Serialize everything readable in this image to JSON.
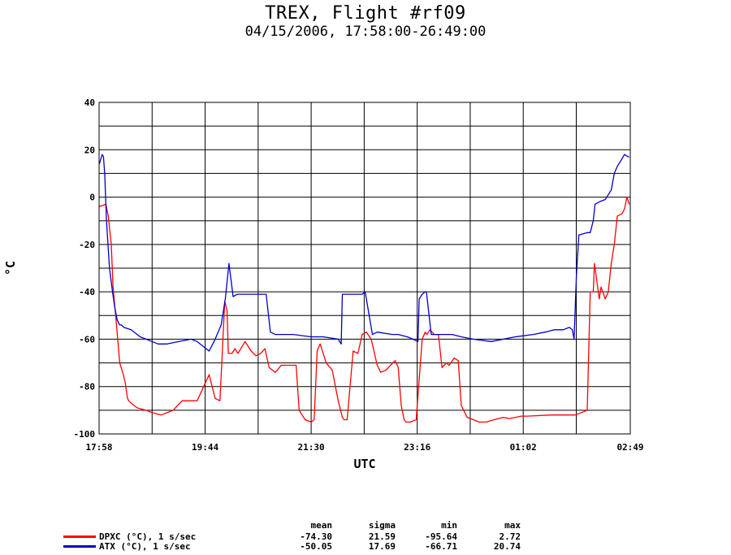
{
  "title": "TREX, Flight #rf09",
  "subtitle": "04/15/2006, 17:58:00-26:49:00",
  "chart_data": {
    "type": "line",
    "xlabel": "UTC",
    "ylabel": "°C",
    "x_unit": "hours UTC",
    "xlim": [
      17.9667,
      26.8167
    ],
    "ylim": [
      -100,
      40
    ],
    "x_ticks": [
      {
        "value": 17.9667,
        "label": "17:58"
      },
      {
        "value": 19.7333,
        "label": "19:44"
      },
      {
        "value": 21.5,
        "label": "21:30"
      },
      {
        "value": 23.2667,
        "label": "23:16"
      },
      {
        "value": 25.0333,
        "label": "01:02"
      },
      {
        "value": 26.8167,
        "label": "02:49"
      }
    ],
    "x_gridlines": [
      17.9667,
      18.85,
      19.7333,
      20.6167,
      21.5,
      22.3833,
      23.2667,
      24.15,
      25.0333,
      25.9167,
      26.8167
    ],
    "y_ticks": [
      -100,
      -80,
      -60,
      -40,
      -20,
      0,
      20,
      40
    ],
    "y_gridlines": [
      -100,
      -90,
      -80,
      -70,
      -60,
      -50,
      -40,
      -30,
      -20,
      -10,
      0,
      10,
      20,
      30,
      40
    ],
    "grid": true,
    "stats_headers": [
      "mean",
      "sigma",
      "min",
      "max"
    ],
    "series": [
      {
        "name": "DPXC (°C), 1 s/sec",
        "color": "#ff0000",
        "stats": {
          "mean": "-74.30",
          "sigma": "21.59",
          "min": "-95.64",
          "max": "2.72"
        },
        "x": [
          17.97,
          18.08,
          18.12,
          18.17,
          18.2,
          18.26,
          18.31,
          18.37,
          18.4,
          18.44,
          18.46,
          18.48,
          18.5,
          18.55,
          18.6,
          18.75,
          18.85,
          19.0,
          19.2,
          19.35,
          19.55,
          19.6,
          19.8,
          19.8,
          19.9,
          19.98,
          20.06,
          20.1,
          20.12,
          20.18,
          20.23,
          20.28,
          20.4,
          20.5,
          20.58,
          20.66,
          20.73,
          20.8,
          20.9,
          20.94,
          21.0,
          21.08,
          21.25,
          21.3,
          21.4,
          21.5,
          21.55,
          21.6,
          21.65,
          21.7,
          21.75,
          21.85,
          21.95,
          22.02,
          22.05,
          22.1,
          22.2,
          22.28,
          22.35,
          22.42,
          22.5,
          22.6,
          22.66,
          22.75,
          22.82,
          22.9,
          22.95,
          23.0,
          23.05,
          23.08,
          23.15,
          23.25,
          23.35,
          23.4,
          23.43,
          23.48,
          23.55,
          23.62,
          23.68,
          23.75,
          23.8,
          23.88,
          23.95,
          24.0,
          24.1,
          24.2,
          24.3,
          24.38,
          24.42,
          24.55,
          24.7,
          24.8,
          24.9,
          25.0,
          25.1,
          25.5,
          25.9,
          26.0,
          26.1,
          26.15,
          26.2,
          26.22,
          26.3,
          26.33,
          26.4,
          26.45,
          26.5,
          26.55,
          26.6,
          26.68,
          26.72,
          26.76,
          26.8
        ],
        "y": [
          -4,
          -3,
          -8,
          -20,
          -38,
          -55,
          -70,
          -75,
          -78,
          -85,
          -86,
          -86.5,
          -87,
          -88,
          -89,
          -90,
          -91,
          -92,
          -90,
          -86,
          -86,
          -86,
          -75,
          -75,
          -85,
          -86,
          -44,
          -48,
          -66,
          -66,
          -64,
          -66,
          -61,
          -65,
          -67,
          -66,
          -64,
          -72,
          -74,
          -73,
          -71,
          -71,
          -71,
          -90,
          -94,
          -95,
          -94,
          -65,
          -62,
          -66,
          -70,
          -73,
          -86,
          -93,
          -94,
          -94,
          -65,
          -66,
          -58,
          -57,
          -60,
          -71,
          -74,
          -73,
          -71,
          -69,
          -72,
          -88,
          -94,
          -95,
          -95,
          -94,
          -60,
          -57,
          -58,
          -56,
          -58,
          -58,
          -72,
          -70,
          -71,
          -68,
          -69,
          -88,
          -93,
          -94,
          -95,
          -95,
          -95,
          -94,
          -93,
          -93.5,
          -93,
          -92.5,
          -92.5,
          -92,
          -92,
          -91,
          -90,
          -40,
          -40,
          -28,
          -43,
          -38,
          -43,
          -40,
          -28,
          -20,
          -8,
          -7,
          -5,
          0,
          -3
        ]
      },
      {
        "name": "ATX (°C), 1 s/sec",
        "color": "#0000cc",
        "stats": {
          "mean": "-50.05",
          "sigma": "17.69",
          "min": "-66.71",
          "max": "20.74"
        },
        "x": [
          17.97,
          18.02,
          18.04,
          18.06,
          18.09,
          18.14,
          18.19,
          18.23,
          18.27,
          18.31,
          18.34,
          18.38,
          18.5,
          18.65,
          18.75,
          18.85,
          18.95,
          19.1,
          19.3,
          19.5,
          19.6,
          19.7,
          19.8,
          19.9,
          20.0,
          20.07,
          20.13,
          20.2,
          20.27,
          20.35,
          20.5,
          20.75,
          20.82,
          20.9,
          21.2,
          21.5,
          21.7,
          21.95,
          22.0,
          22.02,
          22.35,
          22.4,
          22.52,
          22.6,
          22.85,
          22.95,
          23.1,
          23.2,
          23.28,
          23.3,
          23.35,
          23.4,
          23.42,
          23.5,
          23.75,
          23.8,
          23.85,
          24.0,
          24.2,
          24.5,
          24.9,
          25.2,
          25.4,
          25.55,
          25.7,
          25.8,
          25.85,
          25.88,
          25.92,
          25.96,
          26.1,
          26.15,
          26.2,
          26.23,
          26.3,
          26.4,
          26.5,
          26.55,
          26.6,
          26.65,
          26.72,
          26.78,
          26.8
        ],
        "y": [
          14,
          18,
          17,
          10,
          -10,
          -30,
          -40,
          -47,
          -52,
          -54,
          -54,
          -55,
          -56,
          -59,
          -60,
          -61,
          -62,
          -62,
          -61,
          -60,
          -61,
          -63,
          -65,
          -60,
          -54,
          -43,
          -28,
          -42,
          -41,
          -41,
          -41,
          -41,
          -57,
          -58,
          -58,
          -59,
          -59,
          -60,
          -62,
          -41,
          -41,
          -40,
          -58,
          -57,
          -58,
          -58,
          -59,
          -60,
          -61,
          -43,
          -41,
          -40,
          -40,
          -58,
          -58,
          -58,
          -58,
          -59,
          -60,
          -61,
          -59,
          -58,
          -57,
          -56,
          -56,
          -55,
          -56,
          -60,
          -33,
          -16,
          -15,
          -15,
          -10,
          -3,
          -2,
          -1,
          3,
          10,
          13,
          15,
          18,
          17,
          17
        ]
      }
    ]
  }
}
